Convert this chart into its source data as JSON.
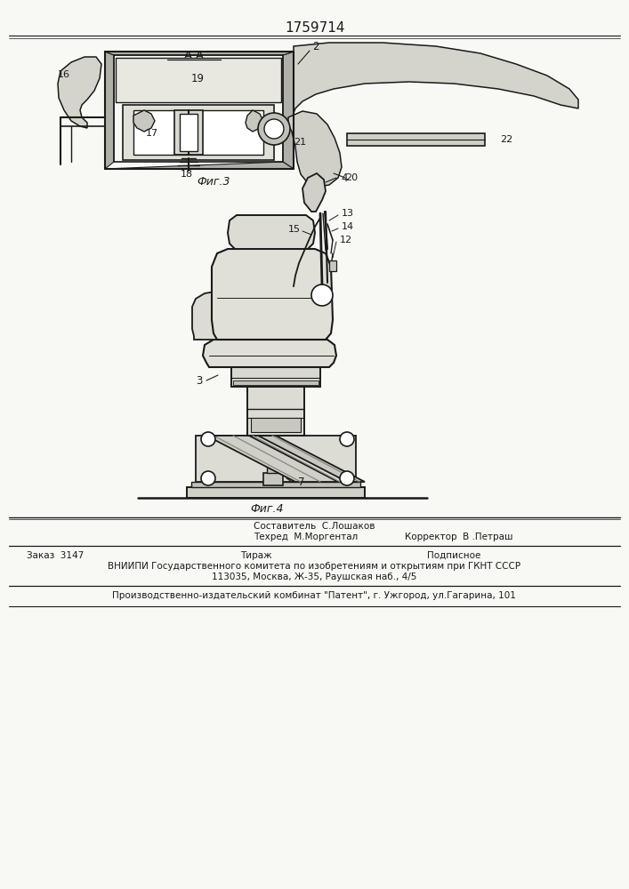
{
  "patent_number": "1759714",
  "bg_color": "#f8f8f5",
  "fig3_label": "Фиг.3",
  "fig4_label": "Фиг.4",
  "section_label": "А-А",
  "bottom_text": {
    "line1_left": "Составитель  С.Лошаков",
    "line2_left": "Техред  М.Моргентал",
    "line2_right": "Корректор  В .Петраш",
    "row2_col1": "Заказ  3147",
    "row2_col2": "Тираж",
    "row2_col3": "Подписное",
    "row3": "ВНИИПИ Государственного комитета по изобретениям и открытиям при ГКНТ СССР",
    "row4": "113035, Москва, Ж-35, Раушская наб., 4/5",
    "row5": "Производственно-издательский комбинат \"Патент\", г. Ужгород, ул.Гагарина, 101"
  },
  "line_color": "#1a1a1a",
  "text_color": "#1a1a1a"
}
